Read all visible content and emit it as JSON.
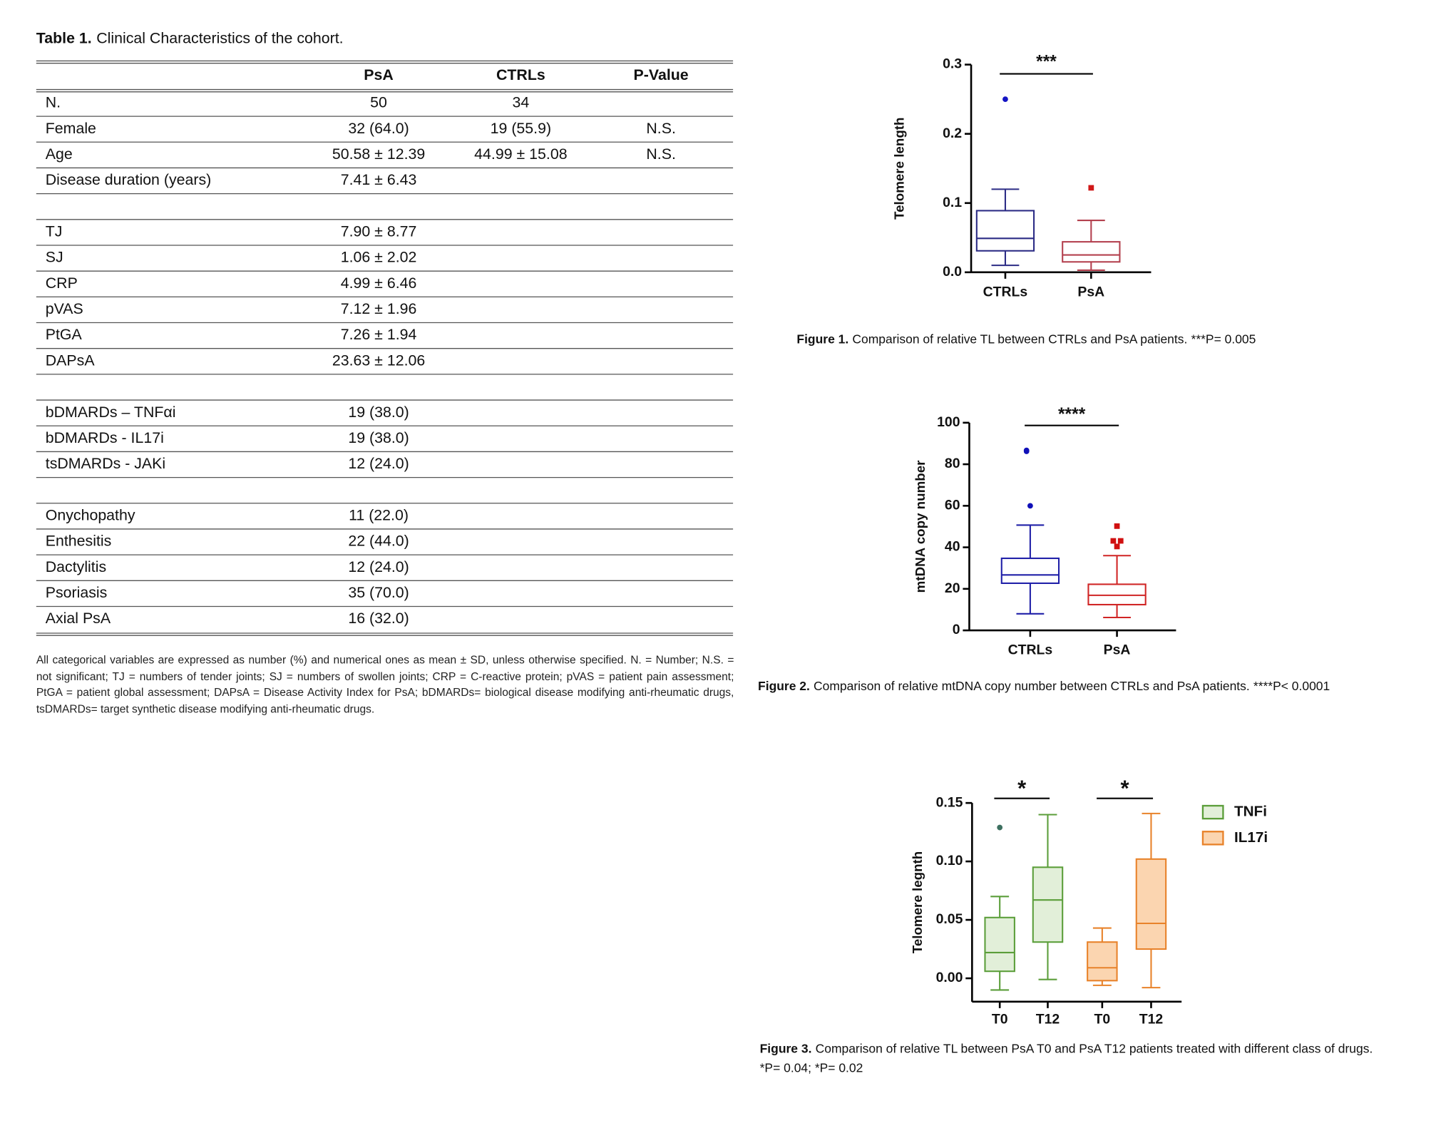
{
  "table": {
    "label": "Table 1.",
    "title": "Clinical Characteristics of the cohort.",
    "columns": [
      "PsA",
      "CTRLs",
      "P-Value"
    ],
    "rows": [
      [
        "N.",
        "50",
        "34"
      ],
      [
        "Female",
        "32 (64.0)",
        "19 (55.9)",
        "N.S."
      ],
      [
        "Age",
        "50.58 ± 12.39",
        "44.99 ± 15.08",
        "N.S."
      ],
      [
        "Disease duration (years)",
        "7.41 ± 6.43"
      ],
      [],
      [
        "TJ",
        "7.90 ± 8.77"
      ],
      [
        "SJ",
        "1.06 ± 2.02"
      ],
      [
        "CRP",
        "4.99 ± 6.46"
      ],
      [
        "pVAS",
        "7.12 ± 1.96"
      ],
      [
        "PtGA",
        "7.26 ± 1.94"
      ],
      [
        "DAPsA",
        "23.63 ± 12.06"
      ],
      [],
      [
        "bDMARDs – TNFαi",
        "19 (38.0)"
      ],
      [
        "bDMARDs - IL17i",
        "19 (38.0)"
      ],
      [
        "tsDMARDs - JAKi",
        "12 (24.0)"
      ],
      [],
      [
        "Onychopathy",
        "11 (22.0)"
      ],
      [
        "Enthesitis",
        "22 (44.0)"
      ],
      [
        "Dactylitis",
        "12 (24.0)"
      ],
      [
        "Psoriasis",
        "35 (70.0)"
      ],
      [
        "Axial PsA",
        "16 (32.0)"
      ]
    ],
    "note": "All categorical variables are expressed as number (%) and numerical ones as mean ± SD, unless otherwise specified. N. = Number; N.S. = not significant; TJ = numbers of tender joints; SJ = numbers of swollen joints; CRP = C-reactive protein; pVAS = patient pain assessment; PtGA = patient global assessment; DAPsA = Disease Activity Index for PsA; bDMARDs= biological disease modifying anti-rheumatic drugs, tsDMARDs= target synthetic disease modifying anti-rheumatic drugs."
  },
  "chart_data": [
    {
      "type": "box",
      "label": "Figure 1.",
      "caption": "Comparison of relative TL between CTRLs and PsA patients.",
      "stats": "***P= 0.005",
      "y_label": "Telomere length",
      "ylim": [
        0,
        0.3
      ],
      "yticks": [
        {
          "value": 0,
          "label": "0.0"
        },
        0.1,
        0.2,
        0.3
      ],
      "annotations": [
        "***"
      ],
      "boxes": [
        {
          "category": "CTRLs",
          "color": "#2b2b85",
          "outlier_color": "#1414c4",
          "marker": "circle",
          "min": 0.01,
          "q1": 0.031,
          "median": 0.049,
          "q3": 0.089,
          "max": 0.12,
          "outliers": [
            0.25
          ]
        },
        {
          "category": "PsA",
          "color": "#b3404e",
          "outlier_color": "#d01818",
          "marker": "square",
          "min": 0.003,
          "q1": 0.015,
          "median": 0.025,
          "q3": 0.044,
          "max": 0.075,
          "outliers": [
            0.122
          ]
        }
      ]
    },
    {
      "type": "box",
      "label": "Figure 2.",
      "caption": "Comparison of relative mtDNA copy number between CTRLs and PsA patients.",
      "stats": "****P< 0.0001",
      "y_label": "mtDNA copy number",
      "ylim": [
        0,
        100
      ],
      "yticks": [
        0,
        20,
        40,
        60,
        80,
        100
      ],
      "annotations": [
        "****"
      ],
      "boxes": [
        {
          "category": "CTRLs",
          "color": "#2020a8",
          "outlier_color": "#1010b8",
          "marker": "circle",
          "min": 8,
          "q1": 22.7,
          "median": 26.7,
          "q3": 34.7,
          "max": 50.7,
          "outliers": [
            86.7,
            86.2,
            60
          ]
        },
        {
          "category": "PsA",
          "color": "#d02525",
          "outlier_color": "#d01010",
          "marker": "square",
          "min": 6.2,
          "q1": 12.4,
          "median": 16.9,
          "q3": 22.2,
          "max": 36,
          "outliers": [
            50.2,
            43.1,
            43.1,
            40.4
          ]
        }
      ]
    },
    {
      "type": "box",
      "label": "Figure 3.",
      "caption": "Comparison of relative TL between PsA T0 and PsA T12 patients treated with different class of drugs.",
      "stats": "*P= 0.04; *P= 0.02",
      "y_label": "Telomere legnth",
      "ylim": [
        -0.02,
        0.15
      ],
      "yticks": [
        {
          "value": 0,
          "label": "0.00"
        },
        0.05,
        {
          "value": 0.1,
          "label": "0.10"
        },
        0.15
      ],
      "annotations": [
        "*",
        "*"
      ],
      "series": [
        {
          "name": "TNFi",
          "color": "#5b9e3a",
          "fill": "#e2efd9",
          "outlier_color": "#3d7060",
          "marker": "circle",
          "boxes": [
            {
              "category": "T0",
              "min": -0.01,
              "q1": 0.006,
              "median": 0.022,
              "q3": 0.052,
              "max": 0.07,
              "outliers": [
                0.129
              ]
            },
            {
              "category": "T12",
              "min": -0.001,
              "q1": 0.031,
              "median": 0.067,
              "q3": 0.095,
              "max": 0.14,
              "outliers": []
            }
          ]
        },
        {
          "name": "IL17i",
          "color": "#e8822a",
          "fill": "#fbd5b0",
          "outlier_color": "#e8822a",
          "marker": "circle",
          "boxes": [
            {
              "category": "T0",
              "min": -0.006,
              "q1": -0.002,
              "median": 0.009,
              "q3": 0.031,
              "max": 0.043,
              "outliers": []
            },
            {
              "category": "T12",
              "min": -0.008,
              "q1": 0.025,
              "median": 0.047,
              "q3": 0.102,
              "max": 0.141,
              "outliers": []
            }
          ]
        }
      ]
    }
  ]
}
